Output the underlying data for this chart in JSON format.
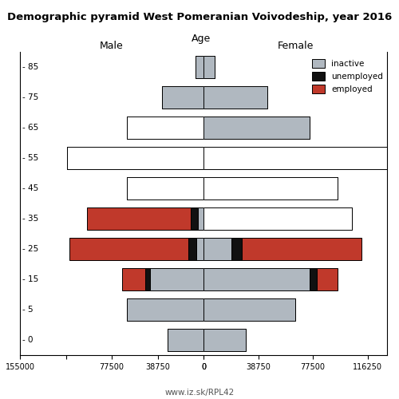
{
  "title": "Demographic pyramid West Pomeranian Voivodeship, year 2016",
  "label_male": "Male",
  "label_female": "Female",
  "label_age": "Age",
  "watermark": "www.iz.sk/RPL42",
  "age_groups": [
    0,
    5,
    15,
    25,
    35,
    45,
    55,
    65,
    75,
    85
  ],
  "male_inactive": [
    30000,
    65000,
    45000,
    6000,
    5000,
    65000,
    115000,
    65000,
    35000,
    7000
  ],
  "male_unemployed": [
    0,
    0,
    4000,
    7000,
    5500,
    0,
    0,
    0,
    0,
    0
  ],
  "male_employed": [
    0,
    0,
    20000,
    100000,
    88000,
    0,
    0,
    0,
    0,
    0
  ],
  "female_inactive": [
    30000,
    65000,
    75000,
    20000,
    105000,
    95000,
    130000,
    75000,
    45000,
    8000
  ],
  "female_unemployed": [
    0,
    0,
    5000,
    7000,
    0,
    0,
    0,
    0,
    0,
    0
  ],
  "female_employed": [
    0,
    0,
    15000,
    85000,
    0,
    0,
    0,
    0,
    0,
    0
  ],
  "male_white_ages": [
    45,
    55,
    65
  ],
  "female_white_ages": [
    35,
    45,
    55
  ],
  "color_inactive": "#b0b8c0",
  "color_unemployed": "#111111",
  "color_employed": "#c0392b",
  "xlim_male": 155000,
  "xlim_female": 130000
}
